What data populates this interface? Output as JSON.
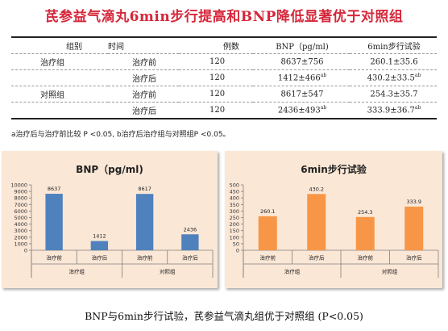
{
  "title": "芪参益气滴丸6min步行提高和BNP降低显著优于对照组",
  "table": {
    "headers": [
      "组别",
      "时间",
      "例数",
      "BNP（pg/ml)",
      "6min步行试验"
    ],
    "rows": [
      {
        "group": "治疗组",
        "time": "治疗前",
        "n": "120",
        "bnp": "8637±756",
        "bnp_sup": "",
        "walk": "260.1±35.6",
        "walk_sup": ""
      },
      {
        "group": "",
        "time": "治疗后",
        "n": "120",
        "bnp": "1412±466",
        "bnp_sup": "ab",
        "walk": "430.2±33.5",
        "walk_sup": "ab"
      },
      {
        "group": "对照组",
        "time": "治疗前",
        "n": "120",
        "bnp": "8617±547",
        "bnp_sup": "",
        "walk": "254.3±35.7",
        "walk_sup": ""
      },
      {
        "group": "",
        "time": "治疗后",
        "n": "120",
        "bnp": "2436±493",
        "bnp_sup": "ab",
        "walk": "333.9±36.7",
        "walk_sup": "ab"
      }
    ],
    "footnote": "a治疗后与治疗前比较 P <0.05, b治疗后治疗组与对照组P <0.05。"
  },
  "conclusion": "BNP与6min步行试验，芪参益气滴丸组优于对照组 (P<0.05)",
  "chart_data": [
    {
      "type": "bar",
      "title": "BNP（pg/ml)",
      "categories": [
        "治疗前",
        "治疗后",
        "治疗前",
        "治疗后"
      ],
      "groups": [
        {
          "label": "治疗组",
          "span": [
            0,
            1
          ]
        },
        {
          "label": "对照组",
          "span": [
            2,
            3
          ]
        }
      ],
      "values": [
        8637,
        1412,
        8617,
        2436
      ],
      "data_labels": [
        "8637",
        "1412",
        "8617",
        "2436"
      ],
      "ylim": [
        0,
        10000
      ],
      "yticks": [
        0,
        1000,
        2000,
        3000,
        4000,
        5000,
        6000,
        7000,
        8000,
        9000,
        10000
      ],
      "bar_color": "#4f81bd",
      "grid": false
    },
    {
      "type": "bar",
      "title": "6min步行试验",
      "categories": [
        "治疗前",
        "治疗后",
        "治疗前",
        "治疗后"
      ],
      "groups": [
        {
          "label": "治疗组",
          "span": [
            0,
            1
          ]
        },
        {
          "label": "对照组",
          "span": [
            2,
            3
          ]
        }
      ],
      "values": [
        260.1,
        430.2,
        254.3,
        333.9
      ],
      "data_labels": [
        "260.1",
        "430.2",
        "254.3",
        "333.9"
      ],
      "ylim": [
        0,
        500
      ],
      "yticks": [
        0,
        50,
        100,
        150,
        200,
        250,
        300,
        350,
        400,
        450,
        500
      ],
      "bar_color": "#f79646",
      "grid": false
    }
  ]
}
